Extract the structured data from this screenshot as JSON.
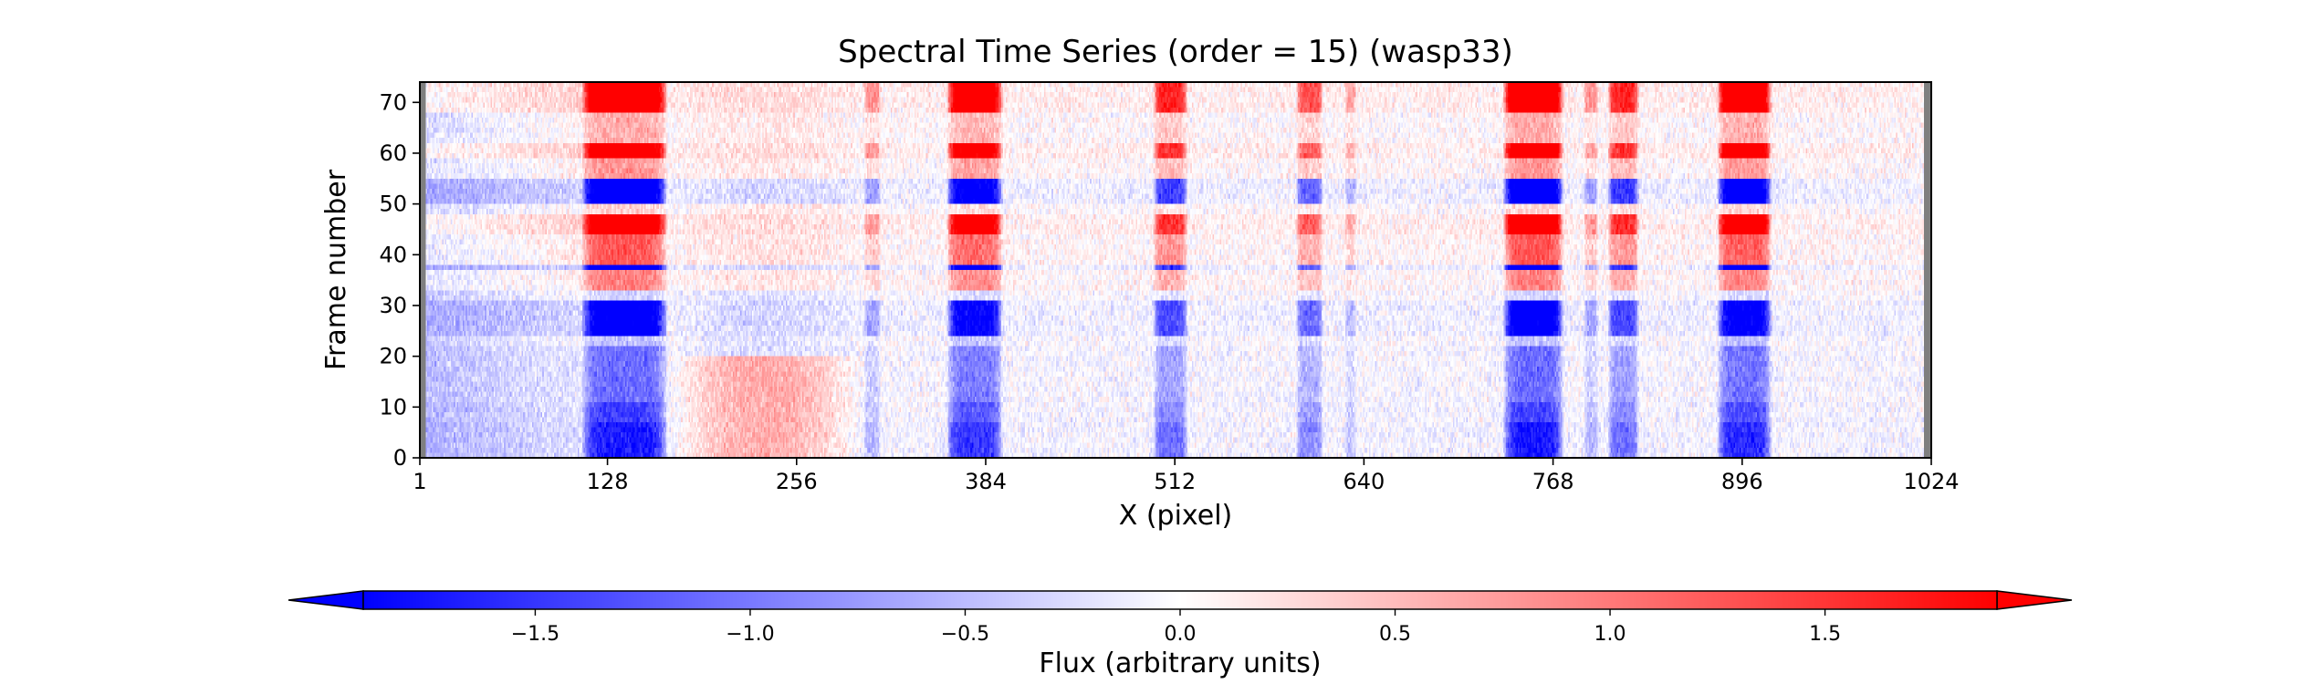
{
  "chart_data": {
    "type": "heatmap",
    "title": "Spectral Time Series (order = 15) (wasp33)",
    "xlabel": "X (pixel)",
    "ylabel": "Frame number",
    "xlim": [
      1,
      1024
    ],
    "ylim": [
      0,
      74
    ],
    "xticks": [
      1,
      128,
      256,
      384,
      512,
      640,
      768,
      896,
      1024
    ],
    "yticks": [
      0,
      10,
      20,
      30,
      40,
      50,
      60,
      70
    ],
    "masked_columns": [
      [
        1,
        4
      ],
      [
        1020,
        1024
      ]
    ],
    "masked_color": "#7f7f7f",
    "colormap": "bwr",
    "colormap_stops": [
      "#0000ff",
      "#ffffff",
      "#ff0000"
    ],
    "colorbar": {
      "label": "Flux (arbitrary units)",
      "vmin": -1.9,
      "vmax": 1.9,
      "ticks": [
        -1.5,
        -1.0,
        -0.5,
        0.0,
        0.5,
        1.0,
        1.5
      ],
      "tick_labels": [
        "−1.5",
        "−1.0",
        "−0.5",
        "0.0",
        "0.5",
        "1.0",
        "1.5"
      ],
      "extend": "both",
      "orientation": "horizontal"
    },
    "absorption_bands": [
      {
        "x_min": 110,
        "x_max": 168,
        "strength": 1.5
      },
      {
        "x_min": 302,
        "x_max": 312,
        "strength": 0.4
      },
      {
        "x_min": 358,
        "x_max": 395,
        "strength": 1.3
      },
      {
        "x_min": 498,
        "x_max": 520,
        "strength": 0.9
      },
      {
        "x_min": 595,
        "x_max": 612,
        "strength": 0.7
      },
      {
        "x_min": 628,
        "x_max": 634,
        "strength": 0.3
      },
      {
        "x_min": 735,
        "x_max": 775,
        "strength": 1.5
      },
      {
        "x_min": 790,
        "x_max": 798,
        "strength": 0.4
      },
      {
        "x_min": 806,
        "x_max": 826,
        "strength": 0.9
      },
      {
        "x_min": 880,
        "x_max": 916,
        "strength": 1.4
      }
    ],
    "frame_blocks": [
      {
        "frames": [
          0,
          6
        ],
        "amplitude": -1.1
      },
      {
        "frames": [
          7,
          10
        ],
        "amplitude": -0.9
      },
      {
        "frames": [
          11,
          21
        ],
        "amplitude": -0.7
      },
      {
        "frames": [
          22,
          23
        ],
        "amplitude": -0.3
      },
      {
        "frames": [
          24,
          30
        ],
        "amplitude": -1.4
      },
      {
        "frames": [
          31,
          32
        ],
        "amplitude": -0.2
      },
      {
        "frames": [
          33,
          36
        ],
        "amplitude": 0.6
      },
      {
        "frames": [
          37,
          37
        ],
        "amplitude": -1.6
      },
      {
        "frames": [
          38,
          43
        ],
        "amplitude": 0.8
      },
      {
        "frames": [
          44,
          47
        ],
        "amplitude": 1.6
      },
      {
        "frames": [
          48,
          49
        ],
        "amplitude": 0.2
      },
      {
        "frames": [
          50,
          54
        ],
        "amplitude": -1.5
      },
      {
        "frames": [
          55,
          58
        ],
        "amplitude": 0.5
      },
      {
        "frames": [
          59,
          61
        ],
        "amplitude": 1.6
      },
      {
        "frames": [
          62,
          67
        ],
        "amplitude": 0.4
      },
      {
        "frames": [
          68,
          73
        ],
        "amplitude": 1.7
      }
    ]
  }
}
